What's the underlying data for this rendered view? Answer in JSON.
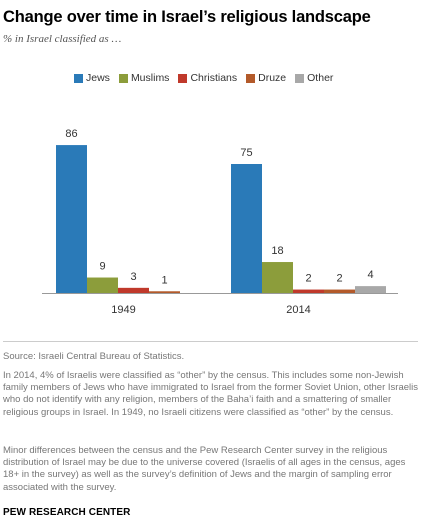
{
  "title": "Change over time in Israel’s religious landscape",
  "subtitle": "% in Israel classified as …",
  "chart_data": {
    "type": "bar",
    "categories": [
      "1949",
      "2014"
    ],
    "series": [
      {
        "name": "Jews",
        "values": [
          86,
          75
        ],
        "color": "#2a7ab8"
      },
      {
        "name": "Muslims",
        "values": [
          9,
          18
        ],
        "color": "#8c9d3b"
      },
      {
        "name": "Christians",
        "values": [
          3,
          2
        ],
        "color": "#c0392b"
      },
      {
        "name": "Druze",
        "values": [
          1,
          2
        ],
        "color": "#b35a2a"
      },
      {
        "name": "Other",
        "values": [
          null,
          4
        ],
        "color": "#a8a8a8"
      }
    ],
    "ylim": [
      0,
      100
    ],
    "legend": "top-left",
    "grid": false
  },
  "notes": {
    "source": "Source: Israeli Central Bureau of Statistics.",
    "note1": "In 2014, 4% of Israelis were classified as “other” by the census. This includes some non-Jewish family members of Jews who have immigrated to Israel from the former Soviet Union, other Israelis who do not identify with any religion, members of the Baha’i faith and a smattering of smaller religious groups in Israel. In 1949, no Israeli citizens were classified as “other” by the census.",
    "note2": "Minor differences between the census and the Pew Research Center survey in the religious distribution of Israel may be due to the universe covered (Israelis of all ages in the census, ages 18+ in the survey) as well as the survey’s definition of Jews and the margin of sampling error associated with the survey."
  },
  "footer": "PEW RESEARCH CENTER"
}
